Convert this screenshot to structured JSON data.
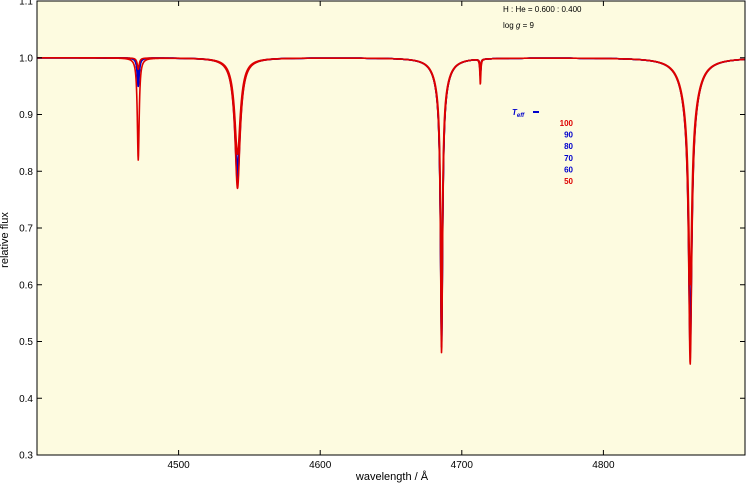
{
  "chart_data": {
    "type": "line",
    "title": "",
    "xlabel": "wavelength / Å",
    "ylabel": "relative flux",
    "xlim": [
      4400,
      4900
    ],
    "ylim": [
      0.3,
      1.1
    ],
    "x_ticks": [
      4500,
      4600,
      4700,
      4800
    ],
    "x_tick_labels": [
      "4500",
      "4600",
      "4700",
      "4800"
    ],
    "y_ticks": [
      0.3,
      0.4,
      0.5,
      0.6,
      0.7,
      0.8,
      0.9,
      1.0,
      1.1
    ],
    "y_tick_labels": [
      "0.3",
      "0.4",
      "0.5",
      "0.6",
      "0.7",
      "0.8",
      "0.9",
      "1.0",
      "1.1"
    ],
    "grid": false,
    "plot_background": "#fdfbe0",
    "annotations": {
      "composition": "H : He = 0.600 : 0.400",
      "gravity_prefix": "log",
      "gravity_symbol": "g",
      "gravity_value": "= 9"
    },
    "legend": {
      "placement": "center-right",
      "title_symbol": "T",
      "title_subscript": "eff",
      "entries": [
        "100",
        "90",
        "80",
        "70",
        "60",
        "50"
      ],
      "colors": [
        "#dd0000",
        "#0000cc",
        "#0000cc",
        "#0000cc",
        "#0000cc",
        "#dd0000"
      ]
    },
    "lines": [
      {
        "center": 4471.5,
        "hwhm": 0.8,
        "depth": [
          0.18,
          0.05,
          0.05,
          0.04,
          0.03,
          0.02
        ],
        "wing_hwhm": 0,
        "wing_depth": 0
      },
      {
        "center": 4541.6,
        "hwhm": 2.0,
        "depth": [
          0.18,
          0.17,
          0.16,
          0.15,
          0.14,
          0.12
        ],
        "wing_hwhm": 4.0,
        "wing_depth": 0.05
      },
      {
        "center": 4685.7,
        "hwhm": 0.9,
        "depth": [
          0.46,
          0.45,
          0.44,
          0.43,
          0.4,
          0.34
        ],
        "wing_hwhm": 5.0,
        "wing_depth": 0.06
      },
      {
        "center": 4713.1,
        "hwhm": 0.4,
        "depth": [
          0.02,
          0.02,
          0.03,
          0.03,
          0.03,
          0.045
        ],
        "wing_hwhm": 0,
        "wing_depth": 0
      },
      {
        "center": 4861.3,
        "hwhm": 1.3,
        "depth": [
          0.44,
          0.42,
          0.4,
          0.39,
          0.38,
          0.3
        ],
        "wing_hwhm": 6.0,
        "wing_depth": 0.1
      }
    ],
    "series": [
      {
        "name": "100",
        "color": "#dd0000"
      },
      {
        "name": "90",
        "color": "#0000cc"
      },
      {
        "name": "80",
        "color": "#0000cc"
      },
      {
        "name": "70",
        "color": "#0000cc"
      },
      {
        "name": "60",
        "color": "#0000cc"
      },
      {
        "name": "50",
        "color": "#dd0000"
      }
    ]
  }
}
